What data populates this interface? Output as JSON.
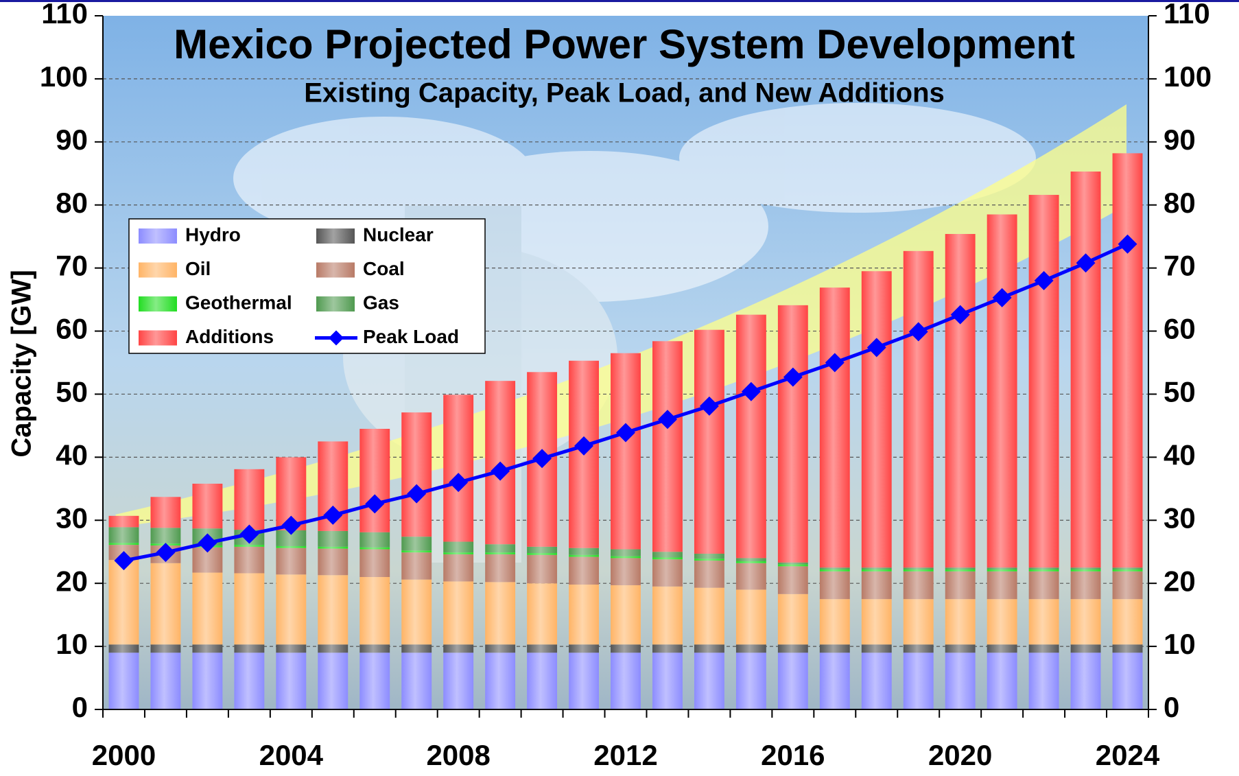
{
  "chart_data": {
    "type": "bar",
    "stacked": true,
    "title": "Mexico Projected Power System Development",
    "subtitle": "Existing Capacity, Peak Load, and New Additions",
    "y_label": "Capacity [GW]",
    "categories": [
      "2000",
      null,
      null,
      null,
      "2004",
      null,
      null,
      null,
      "2008",
      null,
      null,
      null,
      "2012",
      null,
      null,
      null,
      "2016",
      null,
      null,
      null,
      "2020",
      null,
      null,
      null,
      "2024"
    ],
    "ylim": [
      0,
      110
    ],
    "yticks": [
      0,
      10,
      20,
      30,
      40,
      50,
      60,
      70,
      80,
      90,
      100,
      110
    ],
    "y2lim": [
      0,
      110
    ],
    "y2ticks": [
      0,
      10,
      20,
      30,
      40,
      50,
      60,
      70,
      80,
      90,
      100,
      110
    ],
    "grid": true,
    "legend": "upper left",
    "series": [
      {
        "name": "Hydro",
        "color": "#8c8cff",
        "values": [
          9,
          9,
          9,
          9,
          9,
          9,
          9,
          9,
          9,
          9,
          9,
          9,
          9,
          9,
          9,
          9,
          9,
          9,
          9,
          9,
          9,
          9,
          9,
          9,
          9
        ]
      },
      {
        "name": "Nuclear",
        "color": "#555555",
        "values": [
          1.3,
          1.3,
          1.3,
          1.3,
          1.3,
          1.3,
          1.3,
          1.3,
          1.3,
          1.3,
          1.3,
          1.3,
          1.3,
          1.3,
          1.3,
          1.3,
          1.3,
          1.3,
          1.3,
          1.3,
          1.3,
          1.3,
          1.3,
          1.3,
          1.3
        ]
      },
      {
        "name": "Oil",
        "color": "#ffb466",
        "values": [
          13.4,
          12.9,
          11.4,
          11.3,
          11.1,
          11.0,
          10.7,
          10.3,
          10.0,
          9.9,
          9.7,
          9.5,
          9.4,
          9.2,
          9.0,
          8.7,
          8.0,
          7.2,
          7.2,
          7.2,
          7.2,
          7.2,
          7.2,
          7.2,
          7.2
        ]
      },
      {
        "name": "Coal",
        "color": "#b87a66",
        "values": [
          2.4,
          2.8,
          4.0,
          4.2,
          4.2,
          4.2,
          4.4,
          4.3,
          4.3,
          4.4,
          4.5,
          4.4,
          4.3,
          4.3,
          4.3,
          4.2,
          4.4,
          4.4,
          4.4,
          4.4,
          4.4,
          4.4,
          4.4,
          4.4,
          4.4
        ]
      },
      {
        "name": "Geothermal",
        "color": "#22dd22",
        "values": [
          0.3,
          0.3,
          0.3,
          0.3,
          0.3,
          0.3,
          0.3,
          0.3,
          0.3,
          0.3,
          0.3,
          0.3,
          0.3,
          0.3,
          0.3,
          0.3,
          0.3,
          0.3,
          0.3,
          0.3,
          0.3,
          0.3,
          0.3,
          0.3,
          0.3
        ]
      },
      {
        "name": "Gas",
        "color": "#4f9a4f",
        "values": [
          2.5,
          2.5,
          2.7,
          2.4,
          2.5,
          2.5,
          2.4,
          2.2,
          1.7,
          1.3,
          1.0,
          1.1,
          1.1,
          0.9,
          0.8,
          0.5,
          0.3,
          0.3,
          0.3,
          0.3,
          0.3,
          0.3,
          0.3,
          0.3,
          0.3
        ]
      },
      {
        "name": "Additions",
        "color": "#ff4444",
        "values": [
          1.8,
          4.9,
          7.1,
          9.6,
          11.6,
          14.2,
          16.4,
          19.7,
          23.3,
          25.9,
          27.7,
          29.7,
          31.1,
          33.4,
          35.5,
          38.6,
          40.8,
          44.4,
          47.0,
          50.2,
          52.9,
          56.0,
          59.1,
          62.8,
          65.7
        ]
      },
      {
        "name": "Peak Load",
        "type": "line",
        "color": "#0000ff",
        "values": [
          23.6,
          24.9,
          26.4,
          27.8,
          29.2,
          30.8,
          32.6,
          34.2,
          36.0,
          37.8,
          39.8,
          41.8,
          43.9,
          46.0,
          48.1,
          50.4,
          52.7,
          55.0,
          57.4,
          59.9,
          62.6,
          65.3,
          68.0,
          70.8,
          73.8
        ]
      }
    ]
  }
}
